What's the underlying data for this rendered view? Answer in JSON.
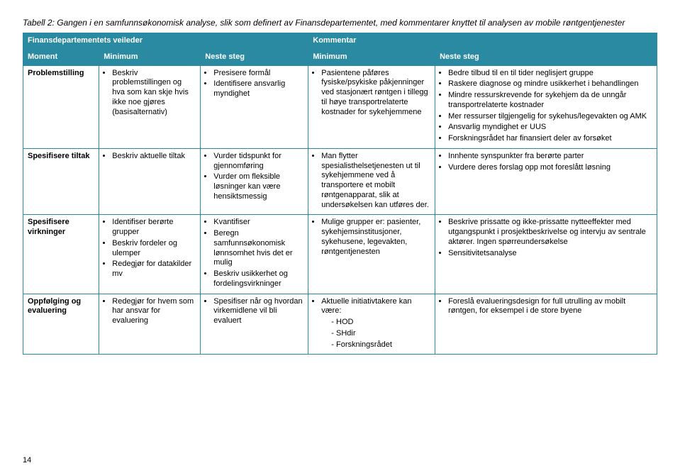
{
  "colors": {
    "border": "#2a8aa2",
    "header_bg": "#2a8aa2",
    "header_fg": "#ffffff",
    "text": "#000000",
    "background": "#ffffff"
  },
  "title": "Tabell 2: Gangen i en samfunnsøkonomisk analyse, slik som definert av Finansdepartementet, med kommentarer knyttet til analysen av mobile røntgentjenester",
  "section_headers": {
    "left": "Finansdepartementets veileder",
    "right": "Kommentar"
  },
  "columns": [
    "Moment",
    "Minimum",
    "Neste steg",
    "Minimum",
    "Neste steg"
  ],
  "rows": [
    {
      "moment": "Problemstilling",
      "min1": [
        "Beskriv problemstillingen og hva som kan skje hvis ikke noe gjøres (basisalternativ)"
      ],
      "neste1": [
        "Presisere formål",
        "Identifisere ansvarlig myndighet"
      ],
      "min2": [
        "Pasientene påføres fysiske/psykiske påkjenninger ved stasjonært røntgen i tillegg til høye transportrelaterte kostnader for sykehjemmene"
      ],
      "neste2": [
        "Bedre tilbud til en til tider neglisjert gruppe",
        "Raskere diagnose og mindre usikkerhet i behandlingen",
        "Mindre ressurskrevende for sykehjem da de unngår transportrelaterte kostnader",
        "Mer ressurser tilgjengelig for sykehus/legevakten og AMK",
        "Ansvarlig myndighet er UUS",
        "Forskningsrådet har finansiert deler av forsøket"
      ]
    },
    {
      "moment": "Spesifisere tiltak",
      "min1": [
        "Beskriv aktuelle tiltak"
      ],
      "neste1": [
        "Vurder tidspunkt for gjennomføring",
        "Vurder om fleksible løsninger kan være hensiktsmessig"
      ],
      "min2": [
        "Man flytter spesialisthelsetjenesten ut til sykehjemmene ved å transportere et mobilt røntgenapparat, slik at undersøkelsen kan utføres der."
      ],
      "neste2": [
        "Innhente synspunkter fra berørte parter",
        "Vurdere deres forslag opp mot foreslått løsning"
      ]
    },
    {
      "moment": "Spesifisere virkninger",
      "min1": [
        "Identifiser berørte grupper",
        "Beskriv fordeler og ulemper",
        "Redegjør for datakilder mv"
      ],
      "neste1": [
        "Kvantifiser",
        "Beregn samfunnsøkonomisk lønnsomhet hvis det er mulig",
        "Beskriv usikkerhet og fordelingsvirkninger"
      ],
      "min2": [
        "Mulige grupper er: pasienter, sykehjemsinstitusjoner, sykehusene, legevakten, røntgentjenesten"
      ],
      "neste2": [
        "Beskrive prissatte og ikke-prissatte nytteeffekter med utgangspunkt i prosjektbeskrivelse og intervju av sentrale aktører. Ingen spørreundersøkelse",
        "Sensitivitetsanalyse"
      ]
    },
    {
      "moment": "Oppfølging og evaluering",
      "min1": [
        "Redegjør for hvem som har ansvar for evaluering"
      ],
      "neste1": [
        "Spesifiser når og hvordan virkemidlene vil bli evaluert"
      ],
      "min2_text": "Aktuelle initiativtakere kan være:",
      "min2_sub": [
        "HOD",
        "SHdir",
        "Forskningsrådet"
      ],
      "neste2": [
        "Foreslå evalueringsdesign for full utrulling av mobilt røntgen, for eksempel i de store byene"
      ]
    }
  ],
  "page_number": "14"
}
